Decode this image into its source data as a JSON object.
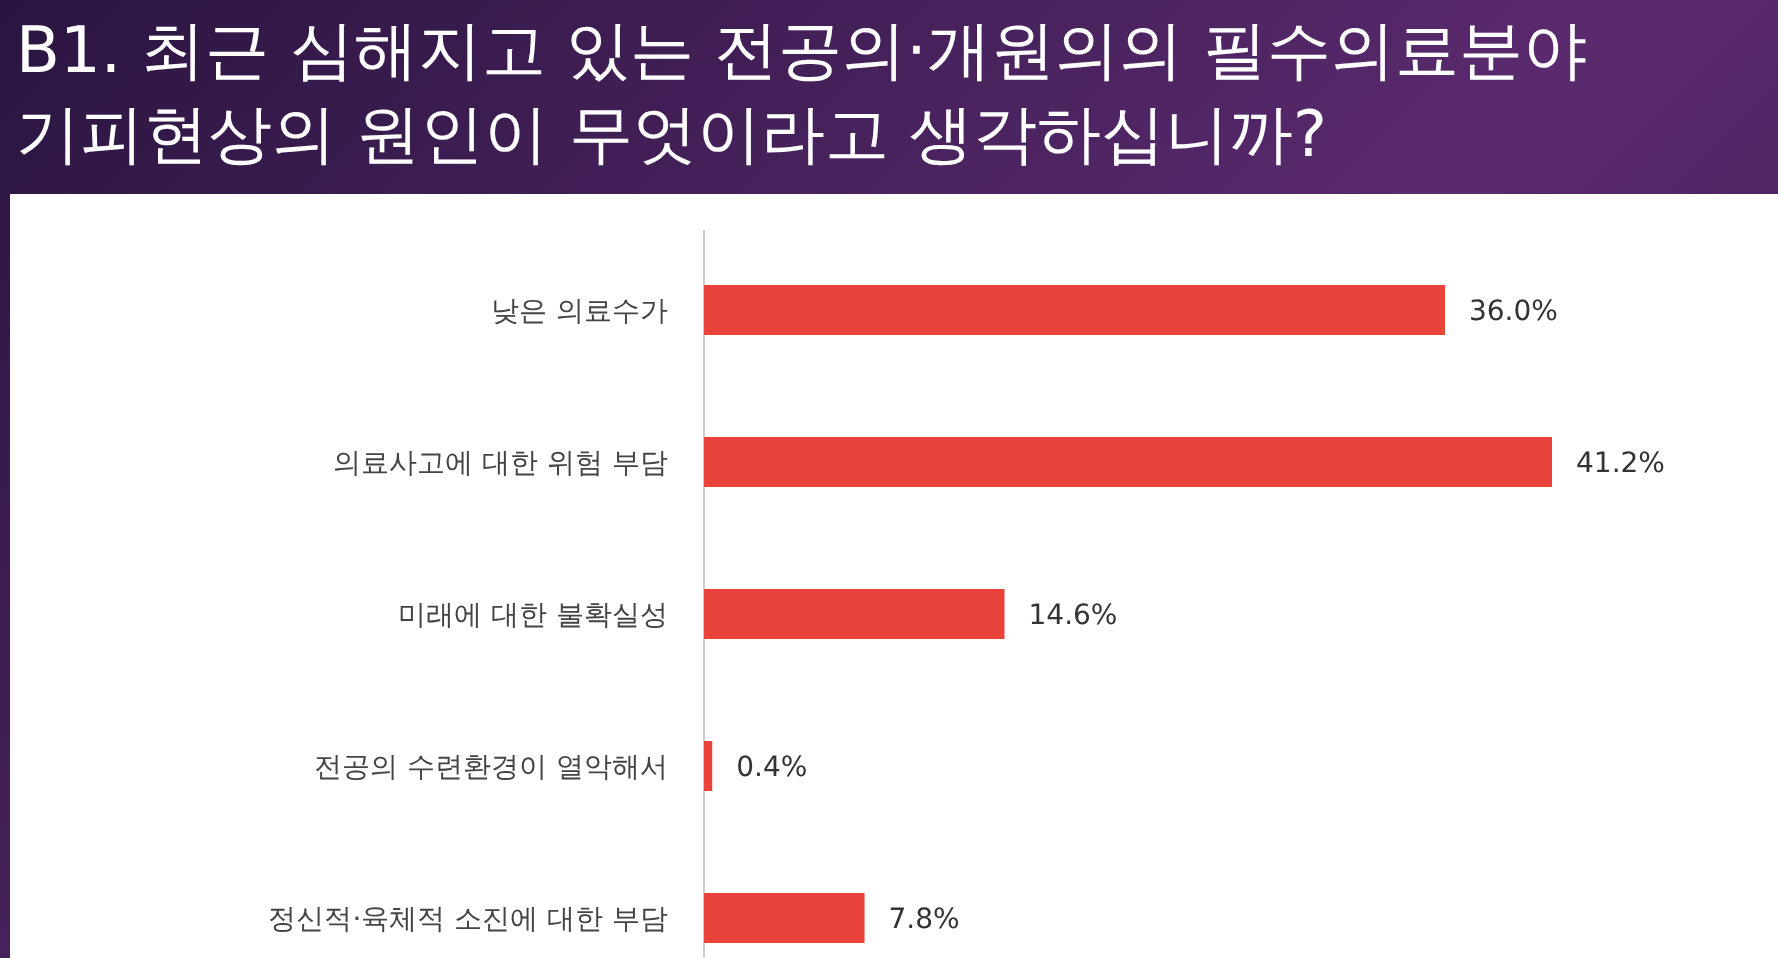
{
  "chart_data": {
    "type": "bar",
    "orientation": "horizontal",
    "title": "B1. 최근 심해지고 있는 전공의·개원의의 필수의료분야 기피현상의 원인이 무엇이라고 생각하십니까?",
    "categories": [
      "낮은 의료수가",
      "의료사고에 대한 위험 부담",
      "미래에 대한 불확실성",
      "전공의 수련환경이 열악해서",
      "정신적·육체적 소진에 대한 부담"
    ],
    "values": [
      36.0,
      41.2,
      14.6,
      0.4,
      7.8
    ],
    "value_labels": [
      "36.0%",
      "41.2%",
      "14.6%",
      "0.4%",
      "7.8%"
    ],
    "color": "#e8423a"
  }
}
